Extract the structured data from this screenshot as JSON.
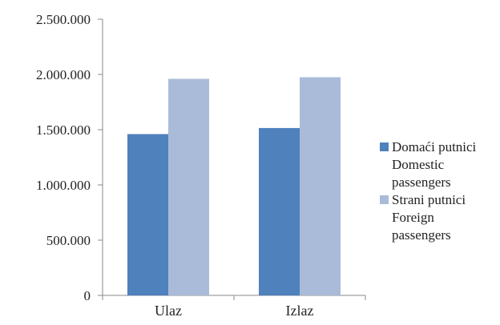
{
  "chart_data": {
    "type": "bar",
    "categories": [
      "Ulaz",
      "Izlaz"
    ],
    "series": [
      {
        "name": "Domaći putnici\nDomestic\npassengers",
        "color": "#4f81bd",
        "values": [
          1460000,
          1515000
        ]
      },
      {
        "name": "Strani putnici\nForeign\npassengers",
        "color": "#a9bbd9",
        "values": [
          1960000,
          1975000
        ]
      }
    ],
    "ylim": [
      0,
      2500000
    ],
    "yticks": [
      0,
      500000,
      1000000,
      1500000,
      2000000,
      2500000
    ],
    "ytick_labels": [
      "0",
      "500.000",
      "1.000.000",
      "1.500.000",
      "2.000.000",
      "2.500.000"
    ],
    "title": "",
    "xlabel": "",
    "ylabel": "",
    "grid": false,
    "legend_position": "right"
  }
}
